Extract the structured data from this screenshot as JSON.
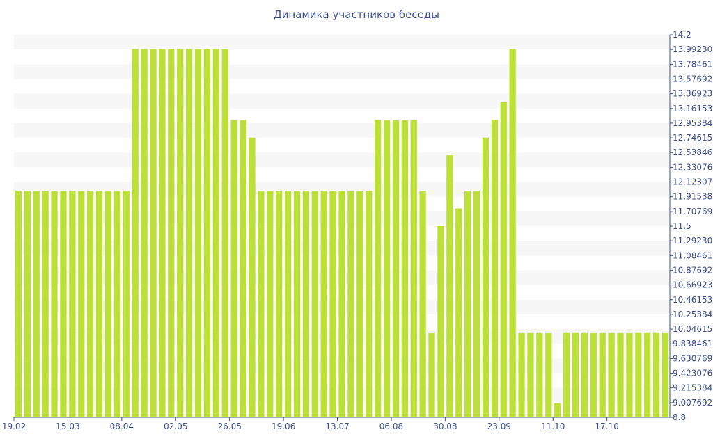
{
  "chart_data": {
    "type": "bar",
    "title": "Динамика участников беседы",
    "xlabel": "",
    "ylabel": "",
    "ylim": [
      8.8,
      14.2
    ],
    "y_ticks": [
      "14.2",
      "13.99230",
      "13.78461",
      "13.57692",
      "13.36923",
      "13.16153",
      "12.95384",
      "12.74615",
      "12.53846",
      "12.33076",
      "12.12307",
      "11.91538",
      "11.70769",
      "11.5",
      "11.29230",
      "11.08461",
      "10.87692",
      "10.66923",
      "10.46153",
      "10.25384",
      "10.04615",
      "9.838461",
      "9.630769",
      "9.423076",
      "9.215384",
      "9.007692",
      "8.8"
    ],
    "x_tick_labels": [
      {
        "label": "19.02",
        "index": 0
      },
      {
        "label": "15.03",
        "index": 6
      },
      {
        "label": "08.04",
        "index": 12
      },
      {
        "label": "02.05",
        "index": 18
      },
      {
        "label": "26.05",
        "index": 24
      },
      {
        "label": "19.06",
        "index": 30
      },
      {
        "label": "13.07",
        "index": 36
      },
      {
        "label": "06.08",
        "index": 42
      },
      {
        "label": "30.08",
        "index": 48
      },
      {
        "label": "23.09",
        "index": 54
      },
      {
        "label": "11.10",
        "index": 60
      },
      {
        "label": "17.10",
        "index": 66
      }
    ],
    "values": [
      12,
      12,
      12,
      12,
      12,
      12,
      12,
      12,
      12,
      12,
      12,
      12,
      12,
      14,
      14,
      14,
      14,
      14,
      14,
      14,
      14,
      14,
      14,
      14,
      13,
      13,
      12.75,
      12,
      12,
      12,
      12,
      12,
      12,
      12,
      12,
      12,
      12,
      12,
      12,
      12,
      13,
      13,
      13,
      13,
      13,
      12,
      10,
      11.5,
      12.5,
      11.75,
      12,
      12,
      12.75,
      13,
      13.25,
      14,
      10,
      10,
      10,
      10,
      9,
      10,
      10,
      10,
      10,
      10,
      10,
      10,
      10,
      10,
      10,
      10,
      10
    ],
    "bar_color": "#bde038",
    "stripe_color": "#f7f7f7",
    "axis_color": "#3b4f8c",
    "grid": true,
    "legend": "none"
  }
}
